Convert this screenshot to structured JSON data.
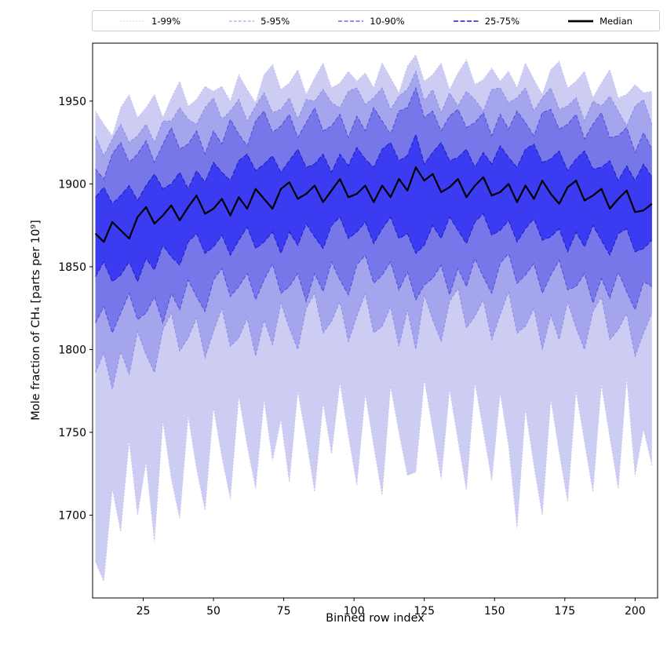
{
  "chart_data": {
    "type": "area",
    "title": "",
    "xlabel": "Binned row index",
    "ylabel": "Mole fraction of CH₄ [parts per 10⁹]",
    "xlim": [
      7,
      208
    ],
    "ylim": [
      1650,
      1985
    ],
    "xticks": [
      25,
      50,
      75,
      100,
      125,
      150,
      175,
      200
    ],
    "yticks": [
      1700,
      1750,
      1800,
      1850,
      1900,
      1950
    ],
    "grid": false,
    "legend_position": "top",
    "x": [
      8,
      11,
      14,
      17,
      20,
      23,
      26,
      29,
      32,
      35,
      38,
      41,
      44,
      47,
      50,
      53,
      56,
      59,
      62,
      65,
      68,
      71,
      74,
      77,
      80,
      83,
      86,
      89,
      92,
      95,
      98,
      101,
      104,
      107,
      110,
      113,
      116,
      119,
      122,
      125,
      128,
      131,
      134,
      137,
      140,
      143,
      146,
      149,
      152,
      155,
      158,
      161,
      164,
      167,
      170,
      173,
      176,
      179,
      182,
      185,
      188,
      191,
      194,
      197,
      200,
      203,
      206
    ],
    "bands": [
      {
        "name": "1-99%",
        "fill": "#cdcdf4",
        "edge": "#c0c0f1",
        "dash": "1.5 2.5",
        "low": [
          1672,
          1660,
          1716,
          1690,
          1745,
          1700,
          1732,
          1684,
          1757,
          1722,
          1698,
          1760,
          1728,
          1703,
          1765,
          1735,
          1710,
          1772,
          1742,
          1716,
          1770,
          1733,
          1758,
          1720,
          1775,
          1746,
          1714,
          1768,
          1737,
          1780,
          1748,
          1718,
          1773,
          1742,
          1712,
          1778,
          1750,
          1724,
          1726,
          1782,
          1752,
          1722,
          1776,
          1745,
          1715,
          1780,
          1751,
          1721,
          1774,
          1742,
          1692,
          1764,
          1730,
          1700,
          1770,
          1738,
          1708,
          1775,
          1744,
          1714,
          1779,
          1747,
          1716,
          1783,
          1724,
          1752,
          1730
        ],
        "high": [
          1944,
          1936,
          1929,
          1946,
          1954,
          1940,
          1946,
          1954,
          1940,
          1952,
          1962,
          1947,
          1951,
          1959,
          1956,
          1959,
          1950,
          1966,
          1957,
          1949,
          1966,
          1972,
          1957,
          1961,
          1969,
          1954,
          1964,
          1973,
          1958,
          1961,
          1968,
          1962,
          1967,
          1958,
          1973,
          1964,
          1955,
          1971,
          1978,
          1962,
          1966,
          1973,
          1957,
          1967,
          1975,
          1960,
          1963,
          1970,
          1962,
          1968,
          1958,
          1973,
          1963,
          1954,
          1969,
          1974,
          1958,
          1962,
          1968,
          1952,
          1961,
          1969,
          1952,
          1954,
          1960,
          1955,
          1956
        ]
      },
      {
        "name": "5-95%",
        "fill": "#a5a5ee",
        "edge": "#8a8ae6",
        "dash": "3.5 2.5",
        "low": [
          1786,
          1798,
          1776,
          1799,
          1785,
          1811,
          1797,
          1786,
          1812,
          1822,
          1799,
          1807,
          1819,
          1795,
          1811,
          1825,
          1802,
          1807,
          1819,
          1796,
          1818,
          1803,
          1828,
          1813,
          1800,
          1825,
          1834,
          1810,
          1817,
          1829,
          1805,
          1820,
          1834,
          1810,
          1814,
          1826,
          1802,
          1824,
          1800,
          1833,
          1818,
          1805,
          1829,
          1837,
          1813,
          1820,
          1830,
          1806,
          1821,
          1835,
          1810,
          1814,
          1825,
          1800,
          1821,
          1806,
          1829,
          1813,
          1800,
          1823,
          1832,
          1806,
          1812,
          1822,
          1796,
          1810,
          1822
        ],
        "high": [
          1929,
          1917,
          1927,
          1936,
          1925,
          1929,
          1936,
          1925,
          1938,
          1938,
          1946,
          1939,
          1936,
          1946,
          1952,
          1939,
          1944,
          1951,
          1938,
          1947,
          1955,
          1943,
          1945,
          1952,
          1939,
          1951,
          1950,
          1957,
          1949,
          1946,
          1956,
          1958,
          1948,
          1952,
          1958,
          1945,
          1953,
          1957,
          1968,
          1950,
          1957,
          1943,
          1955,
          1947,
          1956,
          1951,
          1944,
          1957,
          1958,
          1949,
          1952,
          1958,
          1944,
          1952,
          1958,
          1945,
          1947,
          1952,
          1938,
          1950,
          1947,
          1953,
          1944,
          1935,
          1947,
          1951,
          1936
        ]
      },
      {
        "name": "10-90%",
        "fill": "#7777ea",
        "edge": "#4d4dd9",
        "dash": "5 2.5",
        "low": [
          1816,
          1826,
          1810,
          1822,
          1834,
          1818,
          1822,
          1832,
          1816,
          1834,
          1824,
          1842,
          1832,
          1823,
          1842,
          1849,
          1832,
          1838,
          1846,
          1830,
          1842,
          1852,
          1834,
          1838,
          1846,
          1829,
          1846,
          1835,
          1853,
          1842,
          1833,
          1851,
          1857,
          1840,
          1845,
          1853,
          1836,
          1847,
          1830,
          1839,
          1843,
          1851,
          1833,
          1849,
          1838,
          1855,
          1844,
          1834,
          1852,
          1858,
          1840,
          1845,
          1852,
          1834,
          1845,
          1854,
          1836,
          1838,
          1846,
          1828,
          1843,
          1831,
          1847,
          1835,
          1824,
          1841,
          1838
        ],
        "high": [
          1909,
          1903,
          1918,
          1925,
          1913,
          1918,
          1926,
          1913,
          1924,
          1934,
          1921,
          1924,
          1932,
          1918,
          1932,
          1924,
          1939,
          1930,
          1923,
          1938,
          1944,
          1931,
          1935,
          1942,
          1928,
          1937,
          1946,
          1932,
          1935,
          1942,
          1928,
          1941,
          1932,
          1946,
          1938,
          1930,
          1944,
          1946,
          1958,
          1940,
          1944,
          1932,
          1941,
          1945,
          1934,
          1937,
          1943,
          1929,
          1942,
          1933,
          1944,
          1937,
          1929,
          1943,
          1945,
          1933,
          1936,
          1942,
          1927,
          1936,
          1943,
          1928,
          1929,
          1934,
          1919,
          1931,
          1921
        ]
      },
      {
        "name": "25-75%",
        "fill": "#3b3bf1",
        "edge": "#1d1dc4",
        "dash": "6 2.5",
        "low": [
          1844,
          1853,
          1841,
          1845,
          1853,
          1841,
          1855,
          1848,
          1863,
          1856,
          1851,
          1865,
          1870,
          1858,
          1862,
          1869,
          1857,
          1866,
          1874,
          1861,
          1865,
          1871,
          1858,
          1871,
          1863,
          1876,
          1868,
          1861,
          1875,
          1880,
          1867,
          1871,
          1877,
          1864,
          1873,
          1880,
          1867,
          1870,
          1858,
          1863,
          1875,
          1867,
          1880,
          1872,
          1864,
          1877,
          1882,
          1869,
          1872,
          1878,
          1865,
          1873,
          1879,
          1866,
          1868,
          1873,
          1859,
          1871,
          1862,
          1875,
          1866,
          1857,
          1870,
          1873,
          1859,
          1861,
          1866
        ],
        "high": [
          1892,
          1898,
          1888,
          1893,
          1899,
          1890,
          1899,
          1906,
          1897,
          1900,
          1907,
          1897,
          1908,
          1901,
          1913,
          1907,
          1902,
          1914,
          1918,
          1908,
          1912,
          1917,
          1907,
          1914,
          1921,
          1910,
          1912,
          1918,
          1907,
          1918,
          1911,
          1922,
          1915,
          1910,
          1921,
          1925,
          1914,
          1917,
          1930,
          1912,
          1919,
          1925,
          1914,
          1916,
          1921,
          1910,
          1919,
          1912,
          1923,
          1916,
          1910,
          1921,
          1924,
          1913,
          1915,
          1920,
          1908,
          1915,
          1920,
          1909,
          1910,
          1914,
          1902,
          1911,
          1902,
          1912,
          1904
        ]
      }
    ],
    "median": {
      "name": "Median",
      "color": "#000000",
      "values": [
        1870,
        1865,
        1877,
        1872,
        1867,
        1880,
        1886,
        1876,
        1881,
        1887,
        1878,
        1886,
        1893,
        1882,
        1885,
        1891,
        1881,
        1892,
        1885,
        1897,
        1891,
        1885,
        1897,
        1901,
        1891,
        1894,
        1899,
        1889,
        1896,
        1903,
        1892,
        1894,
        1899,
        1889,
        1899,
        1892,
        1903,
        1896,
        1910,
        1902,
        1906,
        1895,
        1898,
        1903,
        1892,
        1899,
        1904,
        1893,
        1895,
        1900,
        1889,
        1899,
        1891,
        1902,
        1894,
        1888,
        1898,
        1902,
        1890,
        1893,
        1897,
        1885,
        1891,
        1896,
        1883,
        1884,
        1888
      ]
    },
    "legend": [
      {
        "label": "1-99%",
        "color": "#c0c0f1",
        "dash": "1.5 2.5",
        "width": 1
      },
      {
        "label": "5-95%",
        "color": "#8a8ae6",
        "dash": "3.5 2.5",
        "width": 1
      },
      {
        "label": "10-90%",
        "color": "#4d4dd9",
        "dash": "5 2.5",
        "width": 1.2
      },
      {
        "label": "25-75%",
        "color": "#1d1dc4",
        "dash": "6 2.5",
        "width": 1.4
      },
      {
        "label": "Median",
        "color": "#000000",
        "dash": "",
        "width": 2.8
      }
    ]
  }
}
